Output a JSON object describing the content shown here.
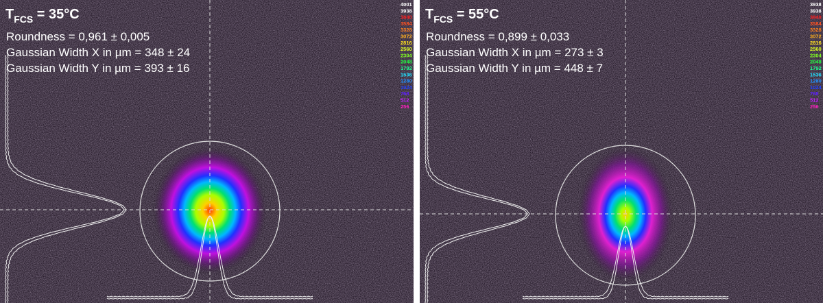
{
  "panels": [
    {
      "title_main": "T",
      "title_sub": "FCS",
      "title_rest": " = 35°C",
      "lines": [
        "Roundness = 0,961 ± 0,005",
        "Gaussian Width X in µm = 348 ± 24",
        "Gaussian Width Y in µm = 393 ± 16"
      ],
      "scale": [
        "4001",
        "3938",
        "3840",
        "3584",
        "3328",
        "3072",
        "2816",
        "2560",
        "2304",
        "2048",
        "1792",
        "1536",
        "1280",
        "1024",
        "768",
        "512",
        "256"
      ]
    },
    {
      "title_main": "T",
      "title_sub": "FCS",
      "title_rest": " = 55°C",
      "lines": [
        "Roundness = 0,899 ± 0,033",
        "Gaussian Width X in µm = 273 ± 3",
        "Gaussian Width Y in µm = 448 ± 7"
      ],
      "scale": [
        "3938",
        "3938",
        "3840",
        "3584",
        "3328",
        "3072",
        "2816",
        "2560",
        "2304",
        "2048",
        "1792",
        "1536",
        "1280",
        "1024",
        "768",
        "512",
        "256"
      ]
    }
  ]
}
